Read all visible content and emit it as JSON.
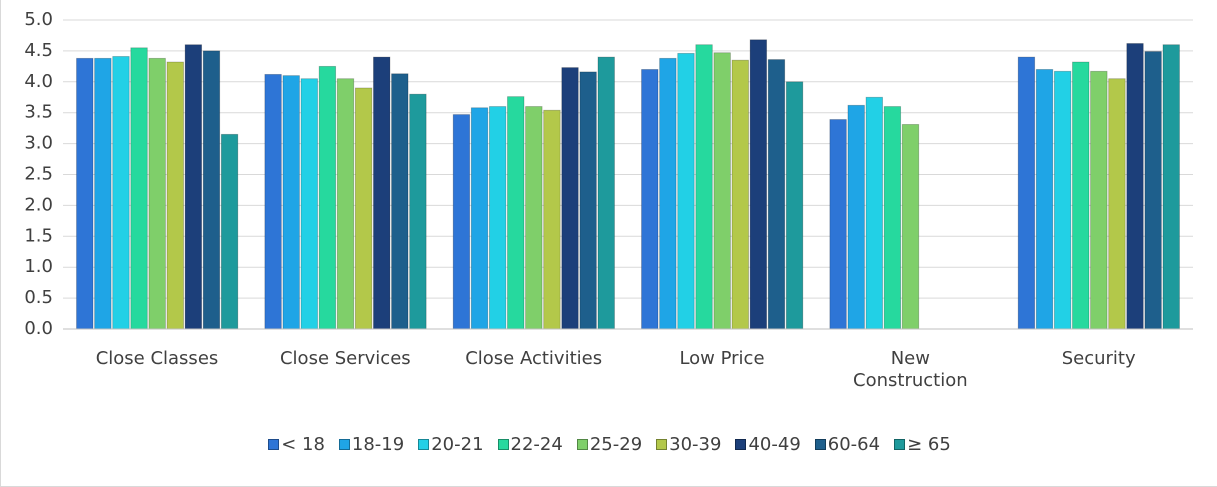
{
  "chart_data": {
    "type": "bar",
    "categories": [
      "Close Classes",
      "Close Services",
      "Close Activities",
      "Low Price",
      "New\nConstruction",
      "Security"
    ],
    "series": [
      {
        "name": "< 18",
        "color": "#2e75d6",
        "values": [
          4.38,
          4.12,
          3.47,
          4.2,
          3.39,
          4.4
        ]
      },
      {
        "name": "18-19",
        "color": "#1fa5e6",
        "values": [
          4.38,
          4.1,
          3.58,
          4.38,
          3.62,
          4.2
        ]
      },
      {
        "name": "20-21",
        "color": "#22d0e6",
        "values": [
          4.41,
          4.05,
          3.6,
          4.46,
          3.75,
          4.17
        ]
      },
      {
        "name": "22-24",
        "color": "#26d99e",
        "values": [
          4.55,
          4.25,
          3.76,
          4.6,
          3.6,
          4.32
        ]
      },
      {
        "name": "25-29",
        "color": "#7fcf6a",
        "values": [
          4.38,
          4.05,
          3.6,
          4.47,
          3.31,
          4.17
        ]
      },
      {
        "name": "30-39",
        "color": "#b3c84a",
        "values": [
          4.32,
          3.9,
          3.54,
          4.35,
          null,
          4.05
        ]
      },
      {
        "name": "40-49",
        "color": "#1c3f7a",
        "values": [
          4.6,
          4.4,
          4.23,
          4.68,
          null,
          4.62
        ]
      },
      {
        "name": "60-64",
        "color": "#1e5f8c",
        "values": [
          4.5,
          4.13,
          4.16,
          4.36,
          null,
          4.49
        ]
      },
      {
        "name": "≥ 65",
        "color": "#1e9a9c",
        "values": [
          3.15,
          3.8,
          4.4,
          4.0,
          null,
          4.6
        ]
      }
    ],
    "ylim": [
      0,
      5
    ],
    "yticks": [
      {
        "value": 0,
        "label": "0.0"
      },
      {
        "value": 0.5,
        "label": "0.5"
      },
      {
        "value": 1,
        "label": "1.0"
      },
      {
        "value": 1.5,
        "label": "1.5"
      },
      {
        "value": 2,
        "label": "2.0"
      },
      {
        "value": 2.5,
        "label": "2.5"
      },
      {
        "value": 3,
        "label": "3.0"
      },
      {
        "value": 3.5,
        "label": "3.5"
      },
      {
        "value": 4,
        "label": "4.0"
      },
      {
        "value": 4.5,
        "label": "4.5"
      },
      {
        "value": 5,
        "label": "5.0"
      }
    ],
    "grid": true,
    "legend": "bottom"
  }
}
